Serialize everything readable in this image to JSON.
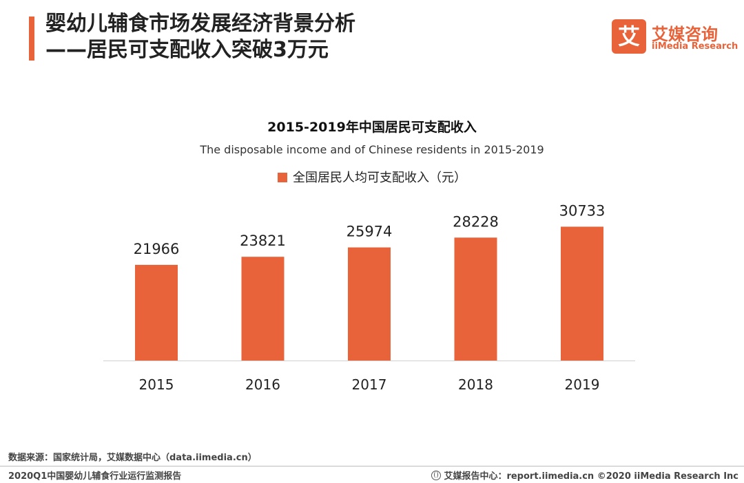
{
  "header": {
    "title_line1": "婴幼儿辅食市场发展经济背景分析",
    "title_line2": "——居民可支配收入突破3万元"
  },
  "logo": {
    "mark": "艾",
    "name_cn": "艾媒咨询",
    "name_en": "iiMedia Research"
  },
  "colors": {
    "accent": "#e8633a",
    "bar": "#e8633a"
  },
  "chart_data": {
    "type": "bar",
    "title": "2015-2019年中国居民可支配收入",
    "subtitle": "The disposable income and of Chinese residents in 2015-2019",
    "legend_position": "top-center",
    "grid": false,
    "xlabel": "",
    "ylabel": "",
    "ylim": [
      0,
      40000
    ],
    "categories": [
      "2015",
      "2016",
      "2017",
      "2018",
      "2019"
    ],
    "series": [
      {
        "name": "全国居民人均可支配收入（元）",
        "values": [
          21966,
          23821,
          25974,
          28228,
          30733
        ]
      }
    ]
  },
  "footer": {
    "source": "数据来源：国家统计局，艾媒数据中心（data.iimedia.cn）",
    "report_name": "2020Q1中国婴幼儿辅食行业运行监测报告",
    "site": "艾媒报告中心：report.iimedia.cn  ©2020  iiMedia Research  Inc"
  }
}
